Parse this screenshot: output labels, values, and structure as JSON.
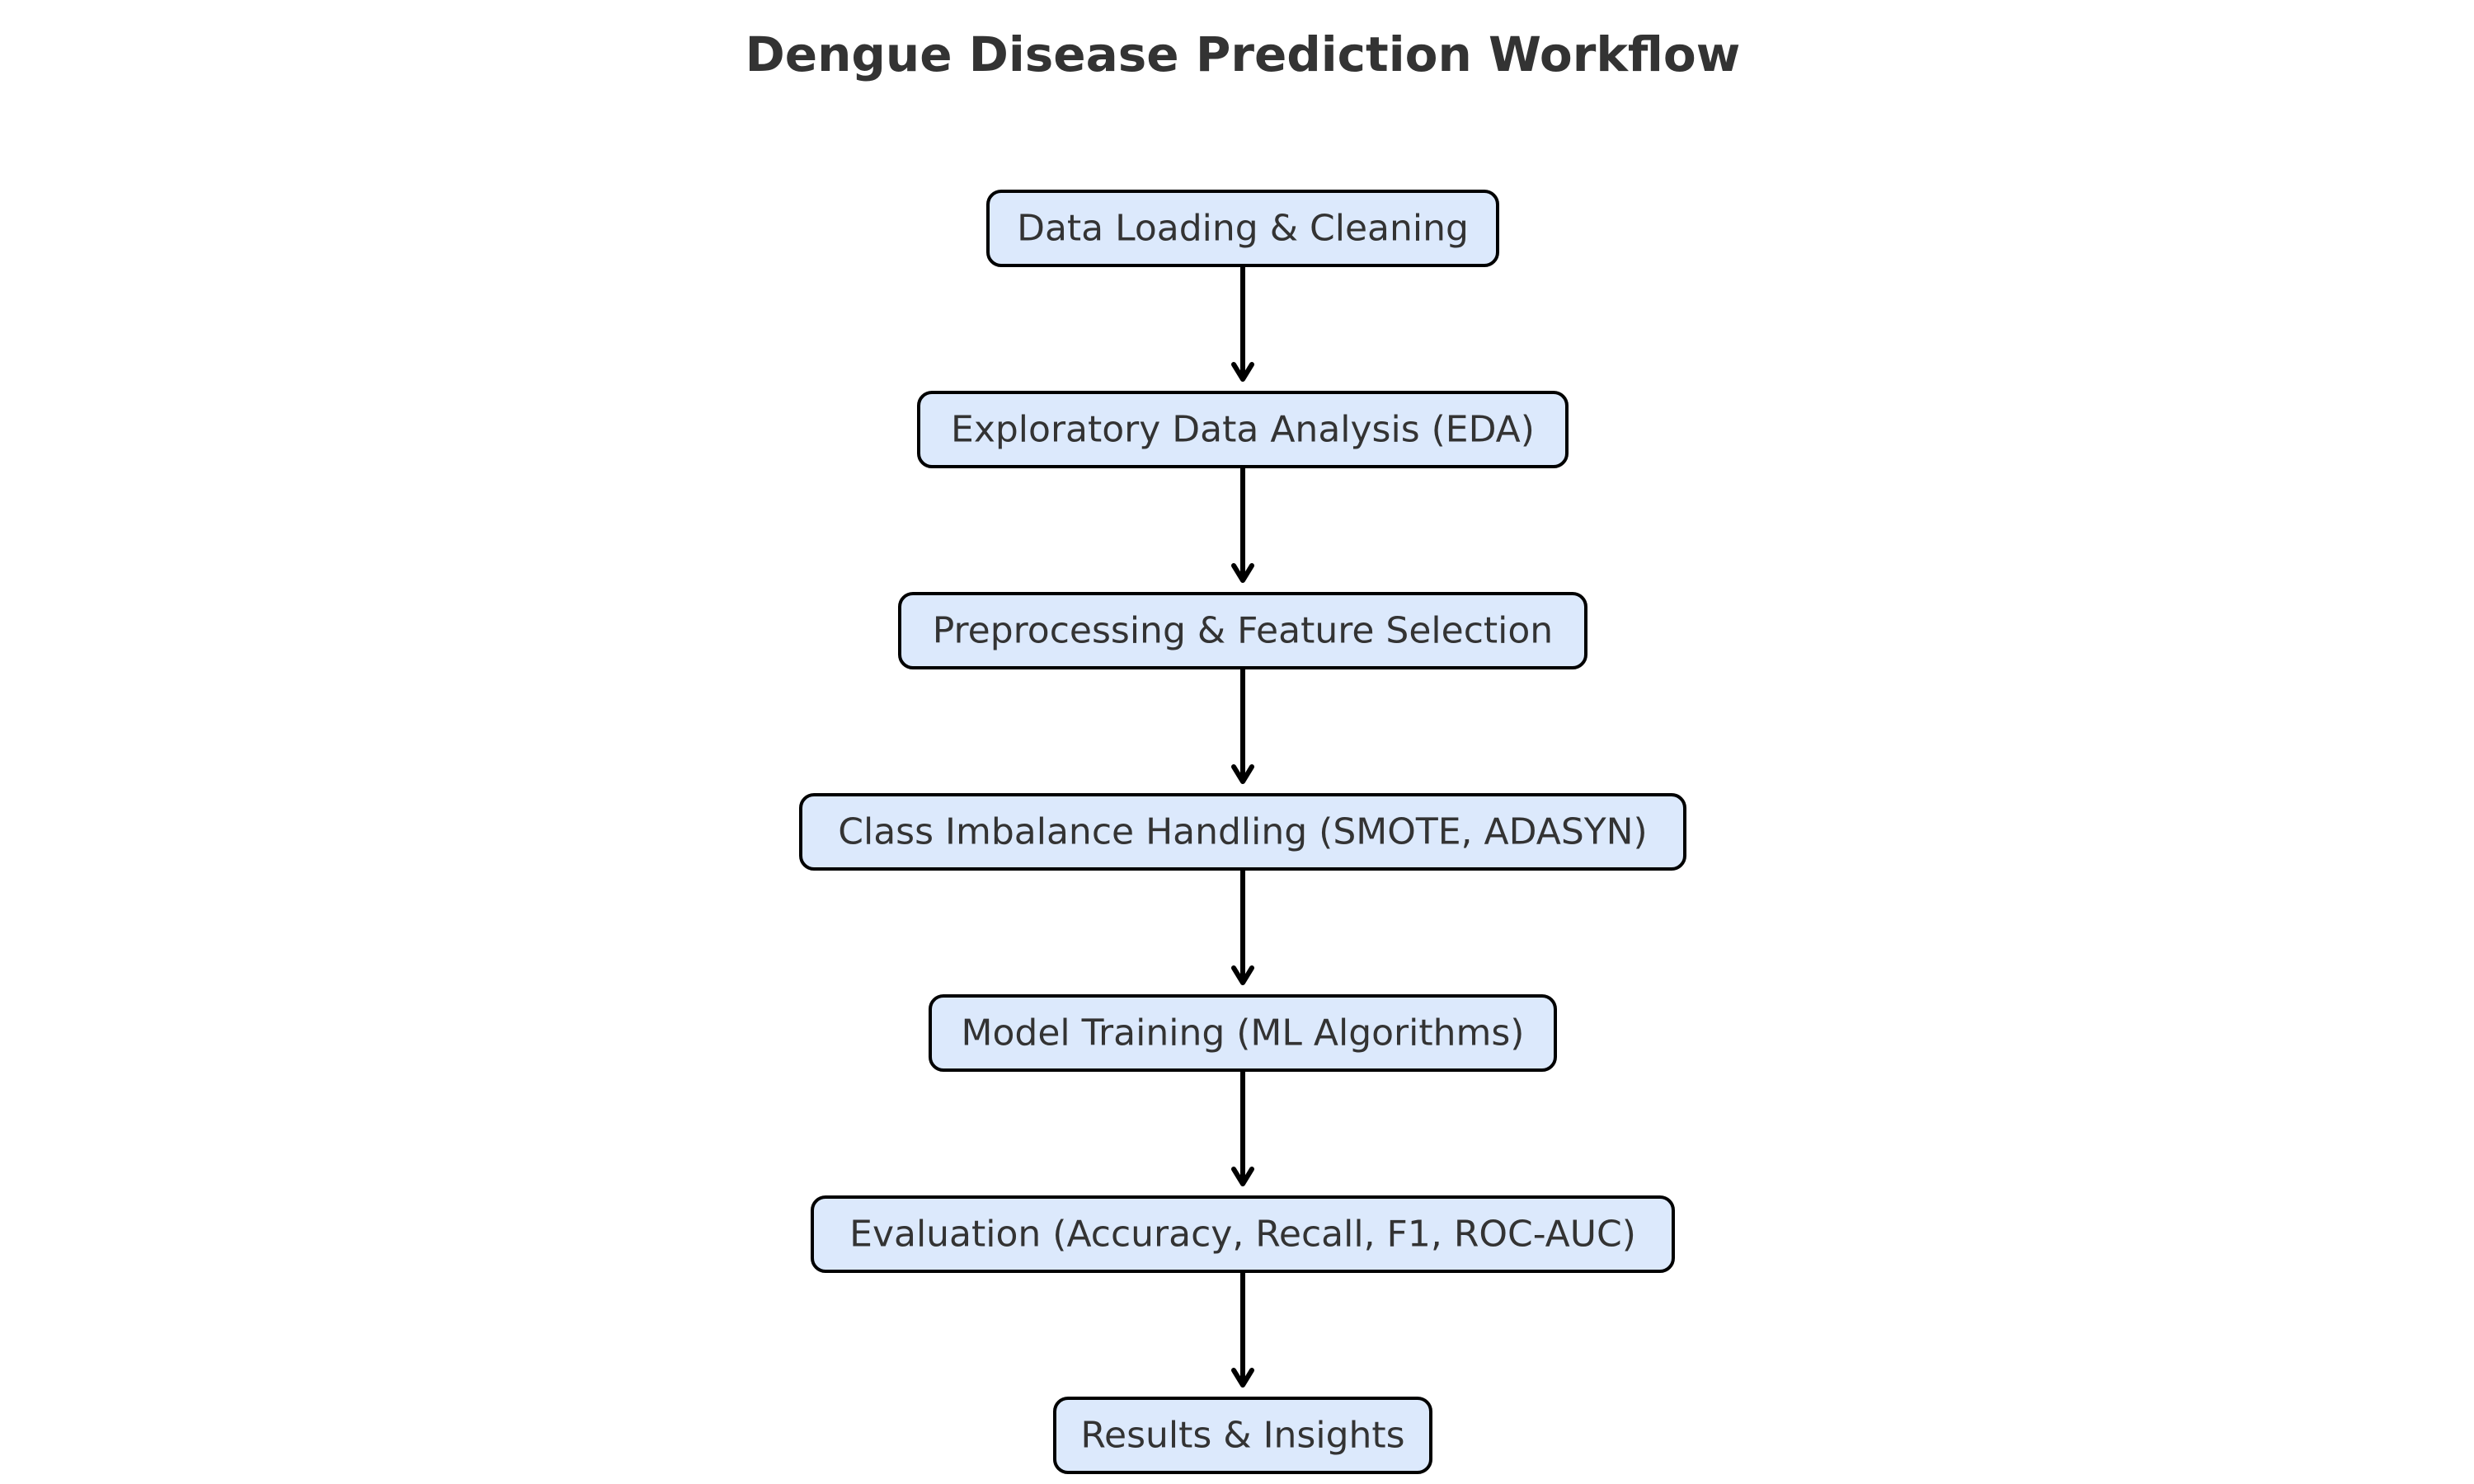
{
  "diagram": {
    "title": "Dengue Disease Prediction Workflow",
    "steps": [
      {
        "label": "Data Loading & Cleaning"
      },
      {
        "label": "Exploratory Data Analysis (EDA)"
      },
      {
        "label": "Preprocessing & Feature Selection"
      },
      {
        "label": "Class Imbalance Handling (SMOTE, ADASYN)"
      },
      {
        "label": "Model Training (ML Algorithms)"
      },
      {
        "label": "Evaluation (Accuracy, Recall, F1, ROC-AUC)"
      },
      {
        "label": "Results & Insights"
      }
    ],
    "colors": {
      "node_fill": "#dce9fc",
      "node_stroke": "#000000",
      "text": "#333333",
      "arrow": "#000000"
    }
  }
}
